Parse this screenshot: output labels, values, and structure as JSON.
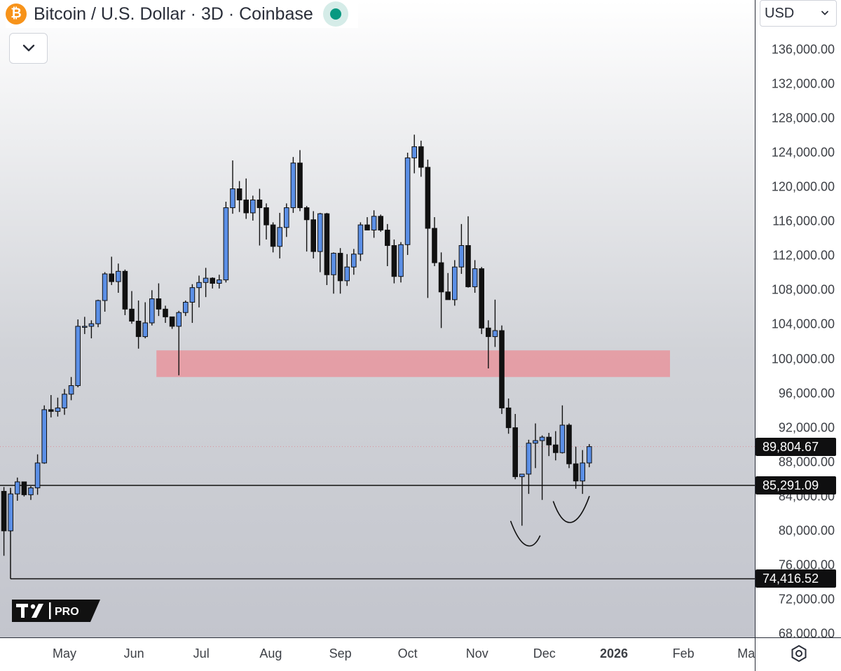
{
  "header": {
    "icon_glyph": "₿",
    "icon": "bitcoin-icon",
    "title": "Bitcoin / U.S. Dollar · 3D · Coinbase",
    "status_color": "#089981"
  },
  "currency": {
    "label": "USD"
  },
  "logo": {
    "label": "PRO"
  },
  "colors": {
    "bull_fill": "#5b8fe6",
    "bear_fill": "#111111",
    "wick": "#111111",
    "zone_fill": "#e8959e"
  },
  "chart_data": {
    "type": "candlestick",
    "timeframe": "3D",
    "ylim": [
      68000,
      138000
    ],
    "y_ticks": [
      "136,000.00",
      "132,000.00",
      "128,000.00",
      "124,000.00",
      "120,000.00",
      "116,000.00",
      "112,000.00",
      "108,000.00",
      "104,000.00",
      "100,000.00",
      "96,000.00",
      "92,000.00",
      "88,000.00",
      "84,000.00",
      "80,000.00",
      "76,000.00",
      "72,000.00",
      "68,000.00"
    ],
    "x_ticks": [
      {
        "label": "May",
        "date": "2025-05-01",
        "bold": false
      },
      {
        "label": "Jun",
        "date": "2025-06-01",
        "bold": false
      },
      {
        "label": "Jul",
        "date": "2025-07-01",
        "bold": false
      },
      {
        "label": "Aug",
        "date": "2025-08-01",
        "bold": false
      },
      {
        "label": "Sep",
        "date": "2025-09-01",
        "bold": false
      },
      {
        "label": "Oct",
        "date": "2025-10-01",
        "bold": false
      },
      {
        "label": "Nov",
        "date": "2025-11-01",
        "bold": false
      },
      {
        "label": "Dec",
        "date": "2025-12-01",
        "bold": false
      },
      {
        "label": "2026",
        "date": "2026-01-01",
        "bold": true
      },
      {
        "label": "Feb",
        "date": "2026-02-01",
        "bold": false
      },
      {
        "label": "Ma",
        "date": "2026-03-01",
        "bold": false
      }
    ],
    "candles_start": "2025-04-04",
    "candle_interval_days": 3,
    "candles": [
      [
        84600,
        85100,
        77100,
        80000
      ],
      [
        80000,
        84700,
        79900,
        84300
      ],
      [
        84300,
        86200,
        83500,
        85700
      ],
      [
        85700,
        85400,
        84000,
        84200
      ],
      [
        84200,
        85200,
        83600,
        85000
      ],
      [
        85000,
        88900,
        84200,
        87900
      ],
      [
        87900,
        94600,
        87800,
        94100
      ],
      [
        94100,
        95800,
        93200,
        93900
      ],
      [
        93900,
        95500,
        93300,
        94300
      ],
      [
        94300,
        96500,
        93500,
        95900
      ],
      [
        95900,
        97900,
        95200,
        96900
      ],
      [
        96900,
        104600,
        96700,
        103800
      ],
      [
        103800,
        104900,
        102900,
        103800
      ],
      [
        103800,
        104500,
        102400,
        104100
      ],
      [
        104100,
        106900,
        103700,
        106800
      ],
      [
        106800,
        110100,
        105500,
        109900
      ],
      [
        109900,
        111900,
        108600,
        109000
      ],
      [
        109000,
        111100,
        107700,
        110200
      ],
      [
        110200,
        110400,
        105100,
        105800
      ],
      [
        105800,
        107900,
        104100,
        104400
      ],
      [
        104400,
        106800,
        101200,
        102600
      ],
      [
        102600,
        106600,
        102400,
        104200
      ],
      [
        104200,
        108000,
        103900,
        107000
      ],
      [
        107000,
        108800,
        105000,
        105800
      ],
      [
        105800,
        106200,
        104200,
        104900
      ],
      [
        104900,
        104900,
        103500,
        103800
      ],
      [
        103800,
        105600,
        98100,
        105400
      ],
      [
        105400,
        106800,
        105000,
        106600
      ],
      [
        106600,
        108700,
        104200,
        108300
      ],
      [
        108300,
        109700,
        106000,
        108900
      ],
      [
        108900,
        110600,
        107200,
        109400
      ],
      [
        109400,
        109500,
        108200,
        108800
      ],
      [
        108800,
        109800,
        108200,
        109200
      ],
      [
        109200,
        118300,
        108900,
        117600
      ],
      [
        117600,
        123100,
        116900,
        119800
      ],
      [
        119800,
        120700,
        117100,
        118500
      ],
      [
        118500,
        121000,
        116300,
        117000
      ],
      [
        117000,
        119000,
        116100,
        118500
      ],
      [
        118500,
        119800,
        113200,
        117600
      ],
      [
        117600,
        118100,
        113900,
        115600
      ],
      [
        115600,
        115900,
        112400,
        113100
      ],
      [
        113100,
        117000,
        111700,
        115300
      ],
      [
        115300,
        118100,
        114200,
        117600
      ],
      [
        117600,
        123500,
        117000,
        122800
      ],
      [
        122800,
        124300,
        117200,
        117600
      ],
      [
        117600,
        117800,
        112500,
        116200
      ],
      [
        116200,
        117200,
        111700,
        112500
      ],
      [
        112500,
        117000,
        110100,
        116900
      ],
      [
        116900,
        117000,
        108600,
        109800
      ],
      [
        109800,
        112400,
        107600,
        112300
      ],
      [
        112300,
        112900,
        107600,
        109100
      ],
      [
        109100,
        112200,
        108500,
        110700
      ],
      [
        110700,
        112800,
        109800,
        112200
      ],
      [
        112200,
        115900,
        111400,
        115600
      ],
      [
        115600,
        116500,
        115000,
        115000
      ],
      [
        115000,
        117300,
        114100,
        116600
      ],
      [
        116600,
        116800,
        114800,
        115000
      ],
      [
        115000,
        115700,
        110800,
        113200
      ],
      [
        113200,
        113900,
        108800,
        109600
      ],
      [
        109600,
        113600,
        108900,
        113300
      ],
      [
        113300,
        124000,
        112100,
        123400
      ],
      [
        123400,
        126100,
        121600,
        124700
      ],
      [
        124700,
        125400,
        121200,
        122300
      ],
      [
        122300,
        123200,
        107100,
        115200
      ],
      [
        115200,
        116500,
        110800,
        111200
      ],
      [
        111200,
        112400,
        103600,
        107800
      ],
      [
        107800,
        110000,
        106900,
        106900
      ],
      [
        106900,
        111500,
        106200,
        110700
      ],
      [
        110700,
        115700,
        109900,
        113200
      ],
      [
        113200,
        116600,
        108300,
        108400
      ],
      [
        108400,
        111500,
        107700,
        110500
      ],
      [
        110500,
        110700,
        102900,
        103600
      ],
      [
        103600,
        104500,
        98900,
        102600
      ],
      [
        102600,
        106900,
        101400,
        103300
      ],
      [
        103300,
        103900,
        93600,
        94300
      ],
      [
        94300,
        95400,
        91300,
        92000
      ],
      [
        92000,
        93600,
        86000,
        86300
      ],
      [
        86300,
        86600,
        80600,
        86600
      ],
      [
        86600,
        90600,
        84300,
        90200
      ],
      [
        90200,
        92500,
        87300,
        90500
      ],
      [
        90500,
        91100,
        83600,
        90900
      ],
      [
        90900,
        91400,
        88700,
        90000
      ],
      [
        90000,
        91600,
        88200,
        89100
      ],
      [
        89100,
        94600,
        89000,
        92300
      ],
      [
        92300,
        92500,
        87300,
        87800
      ],
      [
        87800,
        89800,
        84900,
        85800
      ],
      [
        85800,
        89400,
        84300,
        87900
      ],
      [
        87900,
        90100,
        87400,
        89800
      ]
    ],
    "levels": [
      {
        "label": "89,804.67",
        "price": 89804.67,
        "style": "dotted"
      },
      {
        "label": "85,291.09",
        "price": 85291.09,
        "style": "solid"
      },
      {
        "label": "74,416.52",
        "price": 74416.52,
        "style": "solid"
      }
    ],
    "zones": [
      {
        "from_price": 97900,
        "to_price": 101000,
        "start": "2025-06-11",
        "end": "2026-01-26"
      }
    ],
    "annotations": [
      {
        "type": "hand-drawn-curve",
        "points": [
          [
            "2025-11-16",
            81100
          ],
          [
            "2025-11-21",
            78400
          ],
          [
            "2025-11-26",
            78500
          ],
          [
            "2025-11-29",
            79400
          ]
        ]
      },
      {
        "type": "hand-drawn-curve",
        "points": [
          [
            "2025-12-05",
            83400
          ],
          [
            "2025-12-10",
            80600
          ],
          [
            "2025-12-16",
            81200
          ],
          [
            "2025-12-21",
            84000
          ]
        ]
      }
    ]
  }
}
